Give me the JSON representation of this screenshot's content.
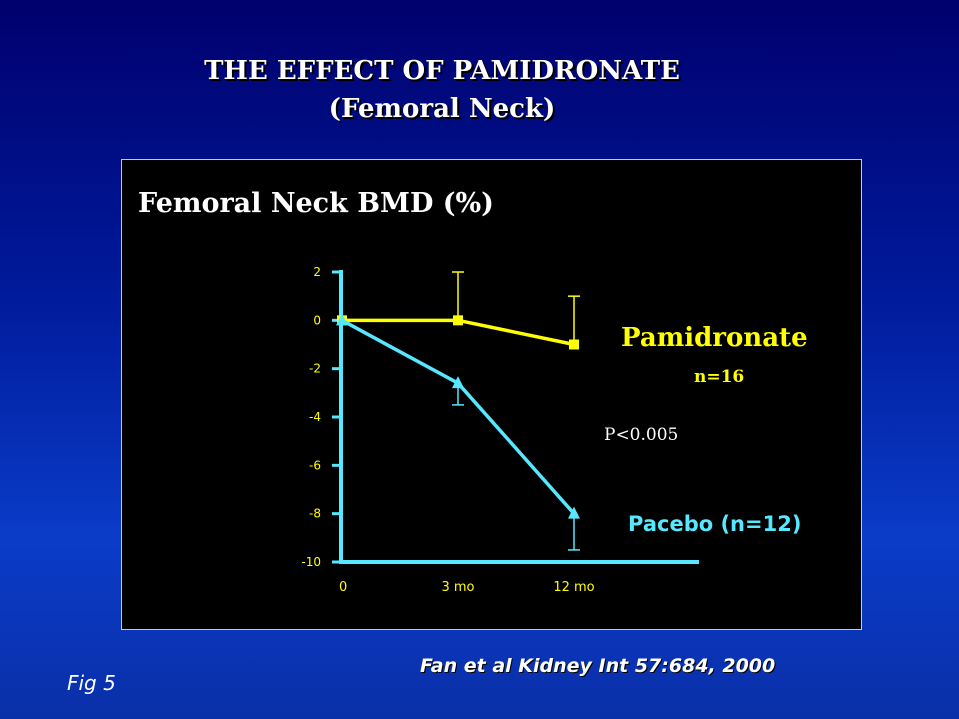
{
  "slide": {
    "title_line1": "THE EFFECT OF PAMIDRONATE",
    "title_line2": "(Femoral Neck)",
    "citation": "Fan et al Kidney Int 57:684, 2000",
    "fig_label": "Fig 5"
  },
  "colors": {
    "pamidronate": "#ffff00",
    "placebo": "#55e8ff",
    "axis": "#55e8ff",
    "tick_text": "#ffff00",
    "panel_background": "#000000"
  },
  "chart_data": {
    "type": "line",
    "title": "Femoral Neck BMD (%)",
    "xlabel": "",
    "ylabel": "",
    "categories": [
      "0",
      "3 mo",
      "12 mo"
    ],
    "ylim": [
      -10,
      2
    ],
    "yticks": [
      "2",
      "0",
      "-2",
      "-4",
      "-6",
      "-8",
      "-10"
    ],
    "grid": false,
    "series": [
      {
        "name": "Pamidronate",
        "sublabel": "n=16",
        "values": [
          0,
          0,
          -1
        ],
        "error_upper": [
          0,
          2,
          1
        ],
        "marker": "square",
        "color": "#ffff00"
      },
      {
        "name": "Pacebo (n=12)",
        "values": [
          0,
          -2.6,
          -8
        ],
        "error_lower": [
          0,
          -3.5,
          -9.5
        ],
        "marker": "triangle",
        "color": "#55e8ff"
      }
    ],
    "annotations": [
      "P<0.005"
    ]
  }
}
